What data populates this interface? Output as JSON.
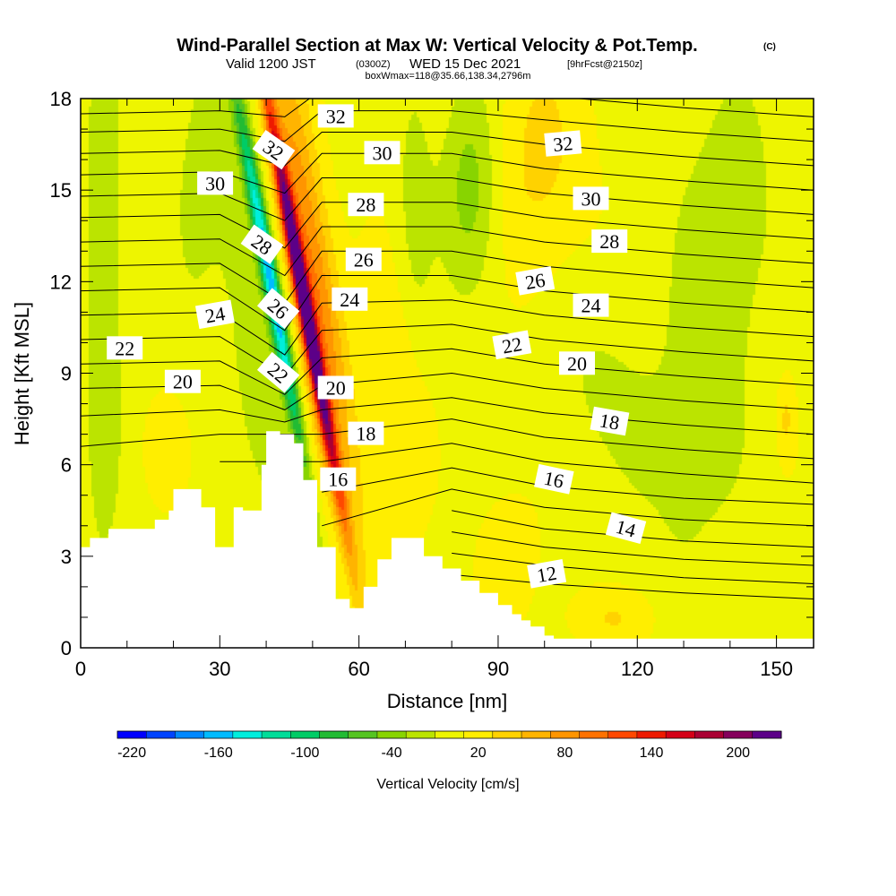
{
  "title": {
    "main": "Wind-Parallel Section at Max W: Vertical Velocity & Pot.Temp.",
    "copyright": "(C)",
    "valid_prefix": "Valid 1200 JST",
    "valid_z": "(0300Z)",
    "valid_date": "WED 15 Dec 2021",
    "forecast": "[9hrFcst@2150z]",
    "box": "boxWmax=118@35.66,138.34,2796m"
  },
  "colors": {
    "background": "#ffffff",
    "terrain": "#ffffff",
    "contour": "#000000",
    "palette": [
      "#0000ff",
      "#0044ff",
      "#0088ff",
      "#00bbff",
      "#00eedd",
      "#00dd99",
      "#00cc66",
      "#22bb33",
      "#55c422",
      "#88d400",
      "#bbe400",
      "#eef500",
      "#ffee00",
      "#ffd200",
      "#ffb400",
      "#ff9500",
      "#ff7200",
      "#ff4800",
      "#ee1a00",
      "#d40018",
      "#aa0033",
      "#85005c",
      "#5c0088"
    ]
  },
  "chart_data": {
    "type": "heatmap",
    "xlabel": "Distance [nm]",
    "ylabel": "Height [Kft MSL]",
    "xlim": [
      0,
      158
    ],
    "ylim": [
      0,
      18
    ],
    "x_ticks": [
      0,
      30,
      60,
      90,
      120,
      150
    ],
    "y_ticks": [
      0,
      3,
      6,
      9,
      12,
      15,
      18
    ],
    "colorbar": {
      "label": "Vertical Velocity [cm/s]",
      "min": -230,
      "max": 230,
      "step": 20,
      "tick_values": [
        -220,
        -160,
        -100,
        -40,
        20,
        80,
        140,
        200
      ],
      "tick_labels": [
        "-220",
        "-160",
        "-100",
        "-40",
        "20",
        "80",
        "140",
        "200"
      ]
    },
    "field": "Vertical Velocity [cm/s]",
    "w_features": [
      {
        "x": 48,
        "y": 11.5,
        "value": 220,
        "sx": 1.6,
        "sy": 6.5,
        "tilt": -0.12
      },
      {
        "x": 50,
        "y": 12,
        "value": 90,
        "sx": 5,
        "sy": 8,
        "tilt": -0.1
      },
      {
        "x": 41,
        "y": 12,
        "value": -160,
        "sx": 1.8,
        "sy": 6,
        "tilt": -0.12
      },
      {
        "x": 37,
        "y": 11,
        "value": -30,
        "sx": 6,
        "sy": 8,
        "tilt": -0.1
      },
      {
        "x": 5,
        "y": 12,
        "value": -35,
        "sx": 4,
        "sy": 9,
        "tilt": 0
      },
      {
        "x": 25,
        "y": 15,
        "value": -20,
        "sx": 5,
        "sy": 4,
        "tilt": 0
      },
      {
        "x": 84,
        "y": 15,
        "value": -45,
        "sx": 6,
        "sy": 3.5,
        "tilt": 0
      },
      {
        "x": 72,
        "y": 14.5,
        "value": -25,
        "sx": 4,
        "sy": 5,
        "tilt": 0
      },
      {
        "x": 140,
        "y": 14,
        "value": -25,
        "sx": 12,
        "sy": 5,
        "tilt": 0
      },
      {
        "x": 130,
        "y": 6,
        "value": -20,
        "sx": 14,
        "sy": 5,
        "tilt": 0
      },
      {
        "x": 110,
        "y": 9,
        "value": -15,
        "sx": 10,
        "sy": 3,
        "tilt": 0
      },
      {
        "x": 68,
        "y": 8,
        "value": 25,
        "sx": 6,
        "sy": 5,
        "tilt": 0
      },
      {
        "x": 92,
        "y": 3,
        "value": 20,
        "sx": 6,
        "sy": 2,
        "tilt": 0
      },
      {
        "x": 18,
        "y": 6.5,
        "value": 20,
        "sx": 4,
        "sy": 1.5,
        "tilt": 0
      },
      {
        "x": 152,
        "y": 7.5,
        "value": 30,
        "sx": 2,
        "sy": 1.5,
        "tilt": 0
      },
      {
        "x": 115,
        "y": 1,
        "value": 25,
        "sx": 10,
        "sy": 1,
        "tilt": 0
      },
      {
        "x": 99,
        "y": 16,
        "value": 30,
        "sx": 10,
        "sy": 4,
        "tilt": 0
      }
    ],
    "terrain_profile": [
      [
        0,
        3.3
      ],
      [
        2,
        3.6
      ],
      [
        6,
        3.9
      ],
      [
        16,
        4.2
      ],
      [
        19,
        4.5
      ],
      [
        20,
        5.2
      ],
      [
        26,
        4.6
      ],
      [
        29,
        3.3
      ],
      [
        33,
        4.6
      ],
      [
        35,
        4.5
      ],
      [
        39,
        6.0
      ],
      [
        40,
        7.1
      ],
      [
        43,
        7.0
      ],
      [
        46,
        6.7
      ],
      [
        48,
        5.5
      ],
      [
        51,
        3.3
      ],
      [
        55,
        1.6
      ],
      [
        58,
        1.3
      ],
      [
        61,
        2.0
      ],
      [
        64,
        2.9
      ],
      [
        67,
        3.6
      ],
      [
        74,
        3.0
      ],
      [
        78,
        2.6
      ],
      [
        82,
        2.2
      ],
      [
        86,
        1.8
      ],
      [
        90,
        1.4
      ],
      [
        93,
        1.1
      ],
      [
        95,
        0.9
      ],
      [
        97,
        0.7
      ],
      [
        100,
        0.4
      ],
      [
        102,
        0.3
      ],
      [
        158,
        0.3
      ]
    ],
    "theta_contours": {
      "levels": [
        11,
        12,
        13,
        14,
        15,
        16,
        17,
        18,
        19,
        20,
        21,
        22,
        23,
        24,
        25,
        26,
        27,
        28,
        29,
        30,
        31,
        32,
        33
      ],
      "y_at_levels_kft": [
        {
          "x": 0,
          "heights": [
            null,
            null,
            null,
            null,
            null,
            null,
            null,
            6.6,
            7.6,
            8.5,
            9.3,
            10.1,
            10.9,
            11.7,
            12.5,
            13.3,
            14.1,
            14.8,
            15.5,
            16.2,
            16.9,
            17.5,
            18.1
          ]
        },
        {
          "x": 30,
          "heights": [
            null,
            null,
            null,
            null,
            null,
            null,
            6.1,
            7.0,
            7.8,
            8.6,
            9.4,
            10.2,
            11.0,
            11.8,
            12.6,
            13.4,
            14.2,
            14.9,
            15.6,
            16.3,
            17.0,
            17.6,
            18.2
          ]
        },
        {
          "x": 44,
          "heights": [
            null,
            null,
            null,
            null,
            null,
            null,
            null,
            null,
            7.4,
            7.8,
            8.3,
            8.9,
            9.6,
            10.4,
            11.3,
            12.2,
            13.1,
            14.0,
            14.9,
            15.8,
            16.6,
            17.4,
            18.2
          ]
        },
        {
          "x": 52,
          "heights": [
            null,
            null,
            null,
            null,
            4.0,
            5.1,
            6.1,
            7.0,
            7.8,
            8.6,
            9.5,
            10.4,
            11.3,
            12.2,
            13.0,
            13.8,
            14.6,
            15.4,
            16.2,
            16.9,
            17.6,
            18.3,
            18.9
          ]
        },
        {
          "x": 80,
          "heights": [
            2.4,
            3.1,
            3.8,
            4.5,
            5.2,
            5.9,
            6.7,
            7.5,
            8.2,
            9.0,
            9.8,
            10.6,
            11.4,
            12.2,
            13.0,
            13.8,
            14.6,
            15.4,
            16.2,
            16.9,
            17.6,
            18.3,
            19.0
          ]
        },
        {
          "x": 100,
          "heights": [
            2.1,
            2.7,
            3.3,
            3.9,
            4.6,
            5.3,
            6.1,
            6.9,
            7.7,
            8.5,
            9.3,
            10.1,
            10.9,
            11.7,
            12.5,
            13.3,
            14.1,
            14.9,
            15.7,
            16.5,
            17.3,
            18.1,
            18.9
          ]
        },
        {
          "x": 130,
          "heights": [
            1.8,
            2.3,
            2.9,
            3.5,
            4.2,
            4.9,
            5.7,
            6.5,
            7.3,
            8.1,
            8.9,
            9.7,
            10.5,
            11.3,
            12.1,
            12.9,
            13.7,
            14.5,
            15.3,
            16.1,
            16.9,
            17.7,
            18.5
          ]
        },
        {
          "x": 158,
          "heights": [
            1.6,
            2.1,
            2.7,
            3.3,
            4.0,
            4.7,
            5.4,
            6.2,
            7.0,
            7.8,
            8.6,
            9.4,
            10.2,
            11.0,
            11.8,
            12.6,
            13.4,
            14.2,
            15.0,
            15.8,
            16.6,
            17.4,
            18.2
          ]
        }
      ]
    },
    "contour_labels": [
      {
        "text": "32",
        "x": 55,
        "y": 17.4,
        "angle": 0
      },
      {
        "text": "32",
        "x": 41.5,
        "y": 16.3,
        "angle": 35
      },
      {
        "text": "30",
        "x": 65,
        "y": 16.2,
        "angle": 0
      },
      {
        "text": "32",
        "x": 104,
        "y": 16.5,
        "angle": -5
      },
      {
        "text": "30",
        "x": 29,
        "y": 15.2,
        "angle": 0
      },
      {
        "text": "28",
        "x": 61.5,
        "y": 14.5,
        "angle": 0
      },
      {
        "text": "30",
        "x": 110,
        "y": 14.7,
        "angle": 0
      },
      {
        "text": "28",
        "x": 39,
        "y": 13.2,
        "angle": 35
      },
      {
        "text": "26",
        "x": 61,
        "y": 12.7,
        "angle": 0
      },
      {
        "text": "28",
        "x": 114,
        "y": 13.3,
        "angle": 0
      },
      {
        "text": "26",
        "x": 98,
        "y": 12.0,
        "angle": -10
      },
      {
        "text": "24",
        "x": 58,
        "y": 11.4,
        "angle": 0
      },
      {
        "text": "26",
        "x": 42.5,
        "y": 11.1,
        "angle": 40
      },
      {
        "text": "24",
        "x": 29,
        "y": 10.9,
        "angle": -10
      },
      {
        "text": "24",
        "x": 110,
        "y": 11.2,
        "angle": 0
      },
      {
        "text": "22",
        "x": 9.5,
        "y": 9.8,
        "angle": 0
      },
      {
        "text": "22",
        "x": 93,
        "y": 9.9,
        "angle": -10
      },
      {
        "text": "20",
        "x": 107,
        "y": 9.3,
        "angle": 0
      },
      {
        "text": "22",
        "x": 42.5,
        "y": 9.0,
        "angle": 40
      },
      {
        "text": "20",
        "x": 22,
        "y": 8.7,
        "angle": 0
      },
      {
        "text": "20",
        "x": 55,
        "y": 8.5,
        "angle": 0
      },
      {
        "text": "18",
        "x": 61.5,
        "y": 7.0,
        "angle": 0
      },
      {
        "text": "18",
        "x": 114,
        "y": 7.4,
        "angle": 10
      },
      {
        "text": "16",
        "x": 55.5,
        "y": 5.5,
        "angle": 0
      },
      {
        "text": "16",
        "x": 102,
        "y": 5.5,
        "angle": 12
      },
      {
        "text": "14",
        "x": 117.5,
        "y": 3.9,
        "angle": 15
      },
      {
        "text": "12",
        "x": 100.5,
        "y": 2.4,
        "angle": -10
      }
    ]
  }
}
